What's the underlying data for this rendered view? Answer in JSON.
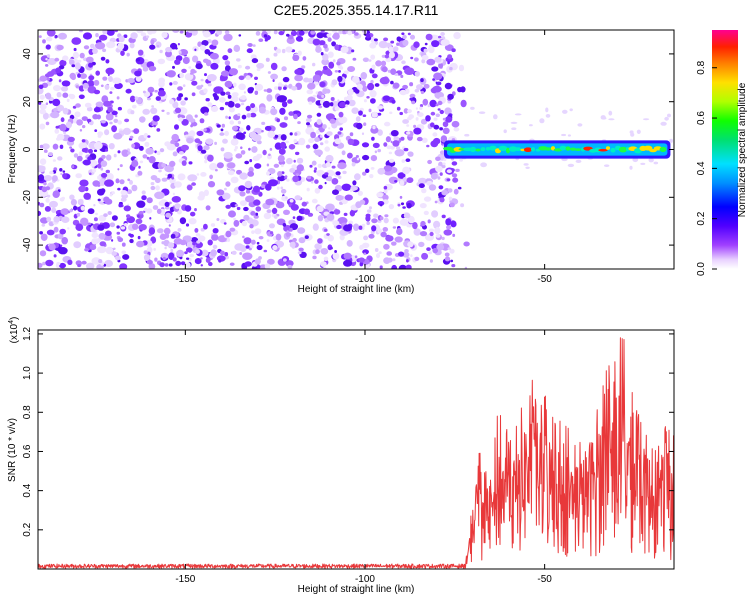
{
  "page_title": "C2E5.2025.355.14.17.R11",
  "colors": {
    "snr_line": "#e8383a",
    "axis": "#000000",
    "background": "#ffffff"
  },
  "chart_data": [
    {
      "type": "heatmap",
      "title": "C2E5.2025.355.14.17.R11",
      "xlabel": "Height of straight line (km)",
      "ylabel": "Frequency (Hz)",
      "xlim": [
        -191,
        -14
      ],
      "ylim": [
        -50,
        50
      ],
      "xticks": [
        -150,
        -100,
        -50
      ],
      "xtick_labels": [
        "-150",
        "-100",
        "-50"
      ],
      "yticks": [
        -40,
        -20,
        0,
        20,
        40
      ],
      "ytick_labels": [
        "-40",
        "-20",
        "0",
        "20",
        "40"
      ],
      "noise_region_x": [
        -191,
        -75
      ],
      "signal_band": {
        "x": [
          -78,
          -15
        ],
        "center_freq": 0,
        "half_width": 3
      },
      "colorbar": {
        "label": "Normalized spectral amplitude",
        "range": [
          0,
          0.95
        ],
        "ticks": [
          0.0,
          0.2,
          0.4,
          0.6,
          0.8
        ],
        "tick_labels": [
          "0.0",
          "0.2",
          "0.4",
          "0.6",
          "0.8"
        ]
      }
    },
    {
      "type": "line",
      "xlabel": "Height of straight line (km)",
      "ylabel": "SNR (10 * v/v)",
      "scale_label": "(x10",
      "scale_exponent": "4",
      "scale_close": ")",
      "xlim": [
        -191,
        -14
      ],
      "ylim": [
        0,
        1.22
      ],
      "xticks": [
        -150,
        -100,
        -50
      ],
      "xtick_labels": [
        "-150",
        "-100",
        "-50"
      ],
      "yticks": [
        0.2,
        0.4,
        0.6,
        0.8,
        1.0,
        1.2
      ],
      "ytick_labels": [
        "0.2",
        "0.4",
        "0.6",
        "0.8",
        "1.0",
        "1.2"
      ],
      "series": [
        {
          "name": "SNR",
          "baseline_until_x": -72,
          "baseline_level": 0.015,
          "key_points": [
            {
              "x": -72,
              "y": 0.05
            },
            {
              "x": -68,
              "y": 0.65
            },
            {
              "x": -65,
              "y": 0.45
            },
            {
              "x": -63,
              "y": 0.82
            },
            {
              "x": -58,
              "y": 0.72
            },
            {
              "x": -55,
              "y": 1.0
            },
            {
              "x": -50,
              "y": 0.9
            },
            {
              "x": -45,
              "y": 0.75
            },
            {
              "x": -40,
              "y": 0.7
            },
            {
              "x": -35,
              "y": 0.95
            },
            {
              "x": -28,
              "y": 1.22
            },
            {
              "x": -25,
              "y": 0.85
            },
            {
              "x": -20,
              "y": 0.7
            },
            {
              "x": -15,
              "y": 0.75
            }
          ]
        }
      ]
    }
  ]
}
